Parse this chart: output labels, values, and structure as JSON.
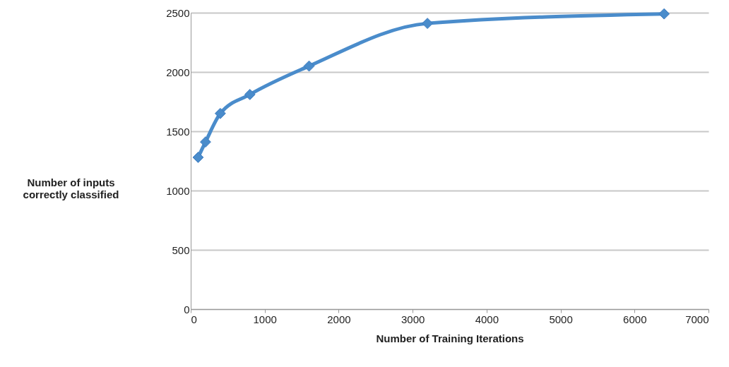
{
  "chart_data": {
    "type": "line",
    "xlabel": "Number of Training Iterations",
    "ylabel": "Number of inputs correctly classified",
    "x": [
      100,
      200,
      400,
      800,
      1600,
      3200,
      6400
    ],
    "series": [
      {
        "color": "#4a8ccb",
        "values": [
          1280,
          1410,
          1650,
          1810,
          2050,
          2410,
          2490
        ]
      }
    ],
    "xlim": [
      0,
      7000
    ],
    "xticks": [
      0,
      1000,
      2000,
      3000,
      4000,
      5000,
      6000,
      7000
    ],
    "ylim": [
      0,
      2500
    ],
    "yticks": [
      0,
      500,
      1000,
      1500,
      2000,
      2500
    ],
    "grid": "y",
    "marker": "diamond",
    "line_style": "solid"
  }
}
